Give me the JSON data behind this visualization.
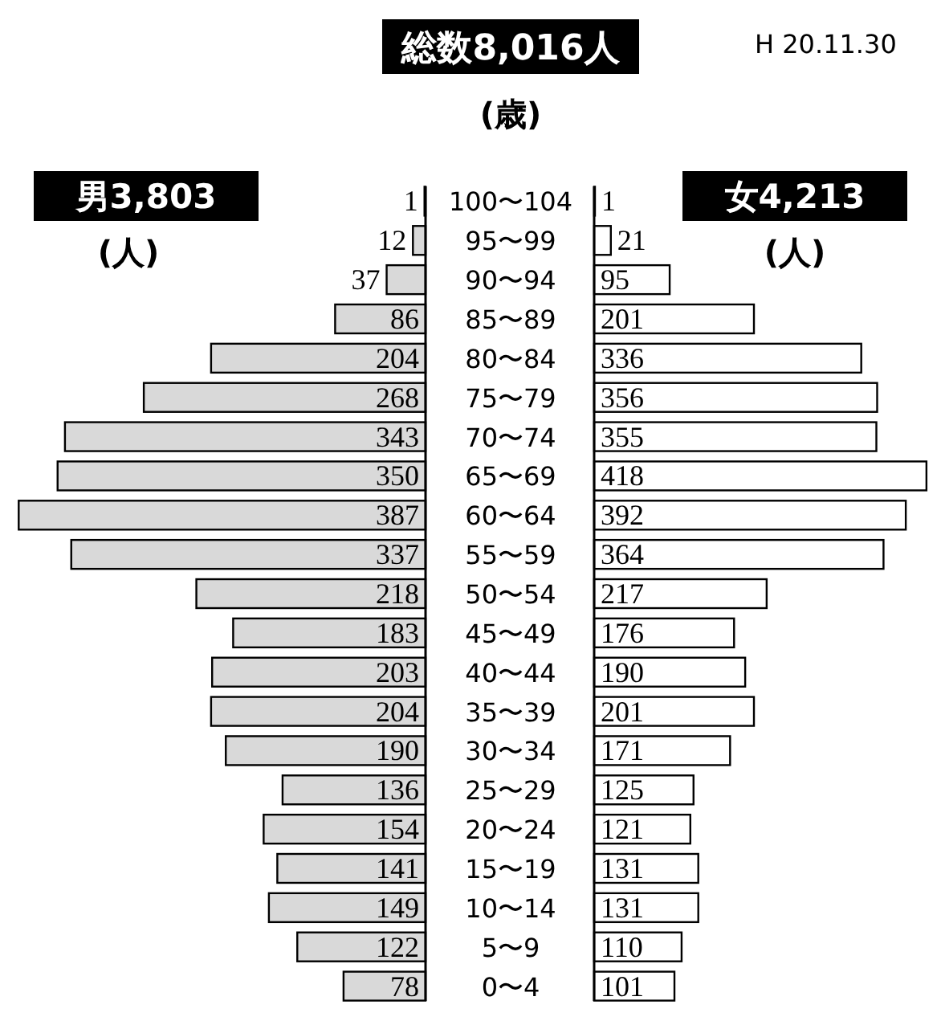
{
  "chart_data": [
    {
      "type": "bar",
      "orientation": "horizontal",
      "title": "男3,803",
      "xlabel": "(人)",
      "tick_labels": false,
      "categories": [
        "100〜104",
        "95〜99",
        "90〜94",
        "85〜89",
        "80〜84",
        "75〜79",
        "70〜74",
        "65〜69",
        "60〜64",
        "55〜59",
        "50〜54",
        "45〜49",
        "40〜44",
        "35〜39",
        "30〜34",
        "25〜29",
        "20〜24",
        "15〜19",
        "10〜14",
        "5〜9",
        "0〜4"
      ],
      "values": [
        1,
        12,
        37,
        86,
        204,
        268,
        343,
        350,
        387,
        337,
        218,
        183,
        203,
        204,
        190,
        136,
        154,
        141,
        149,
        122,
        78
      ],
      "color": "#d9d9d9",
      "data_labels": true
    },
    {
      "type": "bar",
      "orientation": "horizontal",
      "title": "女4,213",
      "xlabel": "(人)",
      "ylabel": "(歳)",
      "tick_labels": "y",
      "annotations": [
        "総数8,016人",
        "H 20.11.30"
      ],
      "categories": [
        "100〜104",
        "95〜99",
        "90〜94",
        "85〜89",
        "80〜84",
        "75〜79",
        "70〜74",
        "65〜69",
        "60〜64",
        "55〜59",
        "50〜54",
        "45〜49",
        "40〜44",
        "35〜39",
        "30〜34",
        "25〜29",
        "20〜24",
        "15〜19",
        "10〜14",
        "5〜9",
        "0〜4"
      ],
      "values": [
        1,
        21,
        95,
        201,
        336,
        356,
        355,
        418,
        392,
        364,
        217,
        176,
        190,
        201,
        171,
        125,
        121,
        131,
        131,
        110,
        101
      ],
      "color": "#ffffff",
      "data_labels": true
    }
  ]
}
